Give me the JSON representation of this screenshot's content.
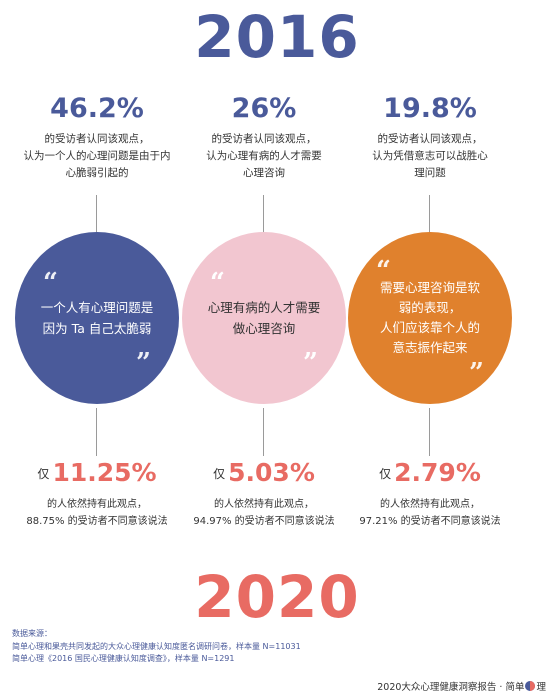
{
  "top_year": "2016",
  "bottom_year": "2020",
  "columns": [
    {
      "percent": "46.2%",
      "description": [
        "的受访者认同该观点，",
        "认为一个人的心理问题是由于内",
        "心脆弱引起的"
      ],
      "statement": [
        "一个人有心理问题是",
        "因为 Ta 自己太脆弱"
      ],
      "still_prefix": "仅",
      "still_value": "11.25%",
      "still_description": [
        "的人依然持有此观点，",
        "88.75% 的受访者不同意该说法"
      ],
      "circle_color": "#4a5a9a"
    },
    {
      "percent": "26%",
      "description": [
        "的受访者认同该观点，",
        "认为心理有病的人才需要",
        "心理咨询"
      ],
      "statement": [
        "心理有病的人才需要",
        "做心理咨询"
      ],
      "still_prefix": "仅",
      "still_value": "5.03%",
      "still_description": [
        "的人依然持有此观点，",
        "94.97% 的受访者不同意该说法"
      ],
      "circle_color": "#f2c6d0"
    },
    {
      "percent": "19.8%",
      "description": [
        "的受访者认同该观点，",
        "认为凭借意志可以战胜心",
        "理问题"
      ],
      "statement": [
        "需要心理咨询是软",
        "弱的表现，",
        "人们应该靠个人的",
        "意志振作起来"
      ],
      "still_prefix": "仅",
      "still_value": "2.79%",
      "still_description": [
        "的人依然持有此观点，",
        "97.21% 的受访者不同意该说法"
      ],
      "circle_color": "#e0812d"
    }
  ],
  "source": [
    "数据来源：",
    "简单心理和果壳共同发起的大众心理健康认知度匿名调研问卷，样本量 N=11031",
    "简单心理《2016 国民心理健康认知度调查》，样本量 N=1291"
  ],
  "footer": {
    "report": "2020大众心理健康洞察报告 · 简单",
    "brand_end": "理"
  },
  "colors": {
    "blue": "#4a5a9a",
    "coral": "#e86b63",
    "pink": "#f2c6d0",
    "orange": "#e0812d"
  }
}
